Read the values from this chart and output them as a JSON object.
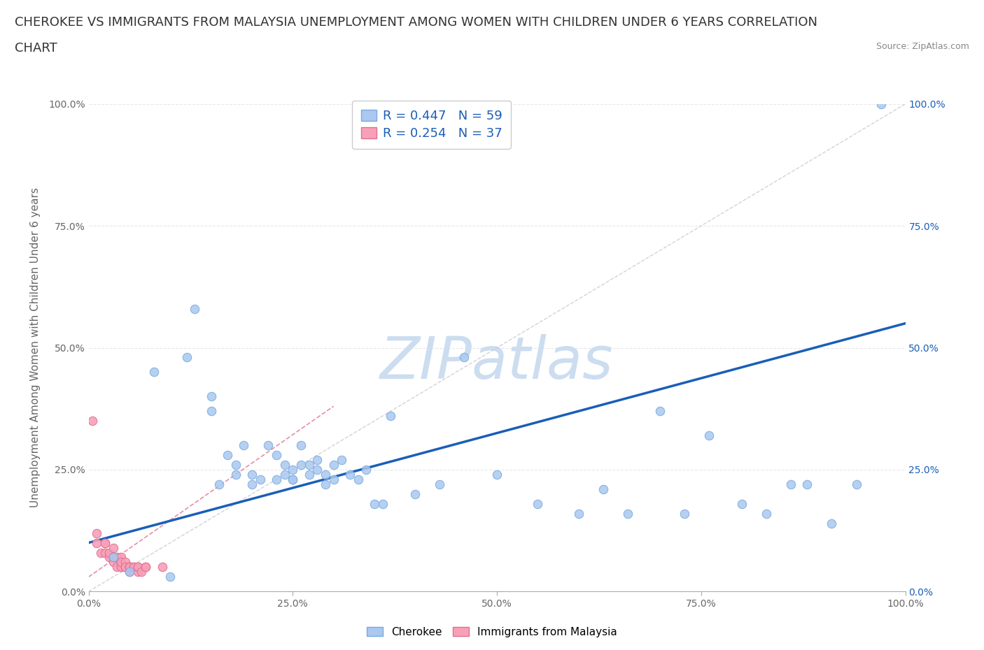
{
  "title_line1": "CHEROKEE VS IMMIGRANTS FROM MALAYSIA UNEMPLOYMENT AMONG WOMEN WITH CHILDREN UNDER 6 YEARS CORRELATION",
  "title_line2": "CHART",
  "source_text": "Source: ZipAtlas.com",
  "ylabel": "Unemployment Among Women with Children Under 6 years",
  "watermark": "ZIPatlas",
  "blue_R": 0.447,
  "blue_N": 59,
  "pink_R": 0.254,
  "pink_N": 37,
  "blue_color": "#aac8f0",
  "blue_edge": "#7aaae0",
  "pink_color": "#f8a0b8",
  "pink_edge": "#e07090",
  "blue_line_color": "#1a5eb8",
  "pink_line_color": "#e06888",
  "ref_line_color": "#c8c8c8",
  "legend_text_color": "#1a5eb8",
  "xlim": [
    0,
    100
  ],
  "ylim": [
    0,
    100
  ],
  "xtick_vals": [
    0,
    25,
    50,
    75,
    100
  ],
  "xtick_labels": [
    "0.0%",
    "25.0%",
    "50.0%",
    "75.0%",
    "100.0%"
  ],
  "ytick_vals": [
    0,
    25,
    50,
    75,
    100
  ],
  "ytick_labels": [
    "0.0%",
    "25.0%",
    "50.0%",
    "75.0%",
    "100.0%"
  ],
  "right_ytick_vals": [
    0,
    25,
    50,
    75,
    100
  ],
  "right_ytick_labels": [
    "0.0%",
    "25.0%",
    "50.0%",
    "75.0%",
    "100.0%"
  ],
  "blue_scatter_x": [
    3,
    5,
    8,
    10,
    12,
    13,
    15,
    15,
    16,
    17,
    18,
    18,
    19,
    20,
    20,
    21,
    22,
    23,
    23,
    24,
    24,
    25,
    25,
    25,
    26,
    26,
    27,
    27,
    28,
    28,
    29,
    29,
    30,
    30,
    31,
    32,
    33,
    34,
    35,
    36,
    37,
    40,
    43,
    46,
    50,
    55,
    60,
    63,
    66,
    70,
    73,
    76,
    80,
    83,
    86,
    88,
    91,
    94,
    97
  ],
  "blue_scatter_y": [
    7,
    4,
    45,
    3,
    48,
    58,
    37,
    40,
    22,
    28,
    26,
    24,
    30,
    24,
    22,
    23,
    30,
    28,
    23,
    26,
    24,
    23,
    23,
    25,
    30,
    26,
    26,
    24,
    27,
    25,
    22,
    24,
    26,
    23,
    27,
    24,
    23,
    25,
    18,
    18,
    36,
    20,
    22,
    48,
    24,
    18,
    16,
    21,
    16,
    37,
    16,
    32,
    18,
    16,
    22,
    22,
    14,
    22,
    100
  ],
  "pink_scatter_x": [
    0.5,
    1,
    1,
    1.5,
    2,
    2,
    2,
    2.5,
    2.5,
    3,
    3,
    3,
    3,
    3.5,
    3.5,
    4,
    4,
    4,
    4,
    4.5,
    4.5,
    4.5,
    5,
    5,
    5,
    5,
    5,
    5,
    5.5,
    5.5,
    6,
    6,
    6,
    6.5,
    7,
    7,
    9
  ],
  "pink_scatter_y": [
    35,
    10,
    12,
    8,
    10,
    8,
    10,
    7,
    8,
    6,
    7,
    9,
    7,
    5,
    7,
    5,
    7,
    5,
    6,
    5,
    6,
    5,
    4,
    5,
    5,
    5,
    5,
    5,
    5,
    5,
    4,
    5,
    5,
    4,
    5,
    5,
    5
  ],
  "blue_line_x0": 0,
  "blue_line_x1": 100,
  "blue_line_y0": 10,
  "blue_line_y1": 55,
  "pink_line_x0": 0,
  "pink_line_x1": 30,
  "pink_line_y0": 3,
  "pink_line_y1": 38,
  "title_fontsize": 13,
  "axis_label_fontsize": 11,
  "tick_fontsize": 10,
  "legend_fontsize": 13,
  "watermark_fontsize": 60,
  "watermark_color": "#ccddf0",
  "background_color": "#ffffff",
  "grid_color": "#e8e8e8",
  "marker_size": 80
}
